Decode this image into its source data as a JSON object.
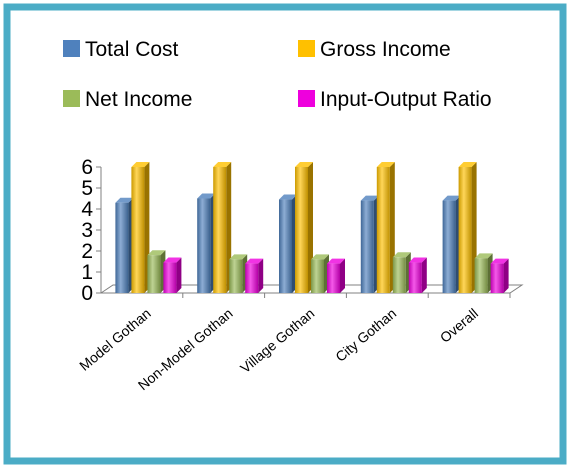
{
  "frame": {
    "border_color": "#4bacc6",
    "background": "#ffffff"
  },
  "chart_data": {
    "type": "bar",
    "title": "",
    "xlabel": "",
    "ylabel": "",
    "categories": [
      "Model Gothan",
      "Non-Model Gothan",
      "Village Gothan",
      "City Gothan",
      "Overall"
    ],
    "series": [
      {
        "name": "Total Cost",
        "color": "#4f81bd",
        "values": [
          4.3,
          4.5,
          4.45,
          4.4,
          4.4
        ]
      },
      {
        "name": "Gross Income",
        "color": "#ffc000",
        "values": [
          6.0,
          6.0,
          6.0,
          6.0,
          6.0
        ]
      },
      {
        "name": "Net Income",
        "color": "#9bbb59",
        "values": [
          1.8,
          1.6,
          1.6,
          1.7,
          1.65
        ]
      },
      {
        "name": "Input-Output Ratio",
        "color": "#ee00dd",
        "values": [
          1.45,
          1.4,
          1.4,
          1.45,
          1.4
        ]
      }
    ],
    "ylim": [
      0,
      6
    ],
    "yticks": [
      0,
      1,
      2,
      3,
      4,
      5,
      6
    ],
    "legend_position": "top",
    "grid": false,
    "three_d": true
  }
}
